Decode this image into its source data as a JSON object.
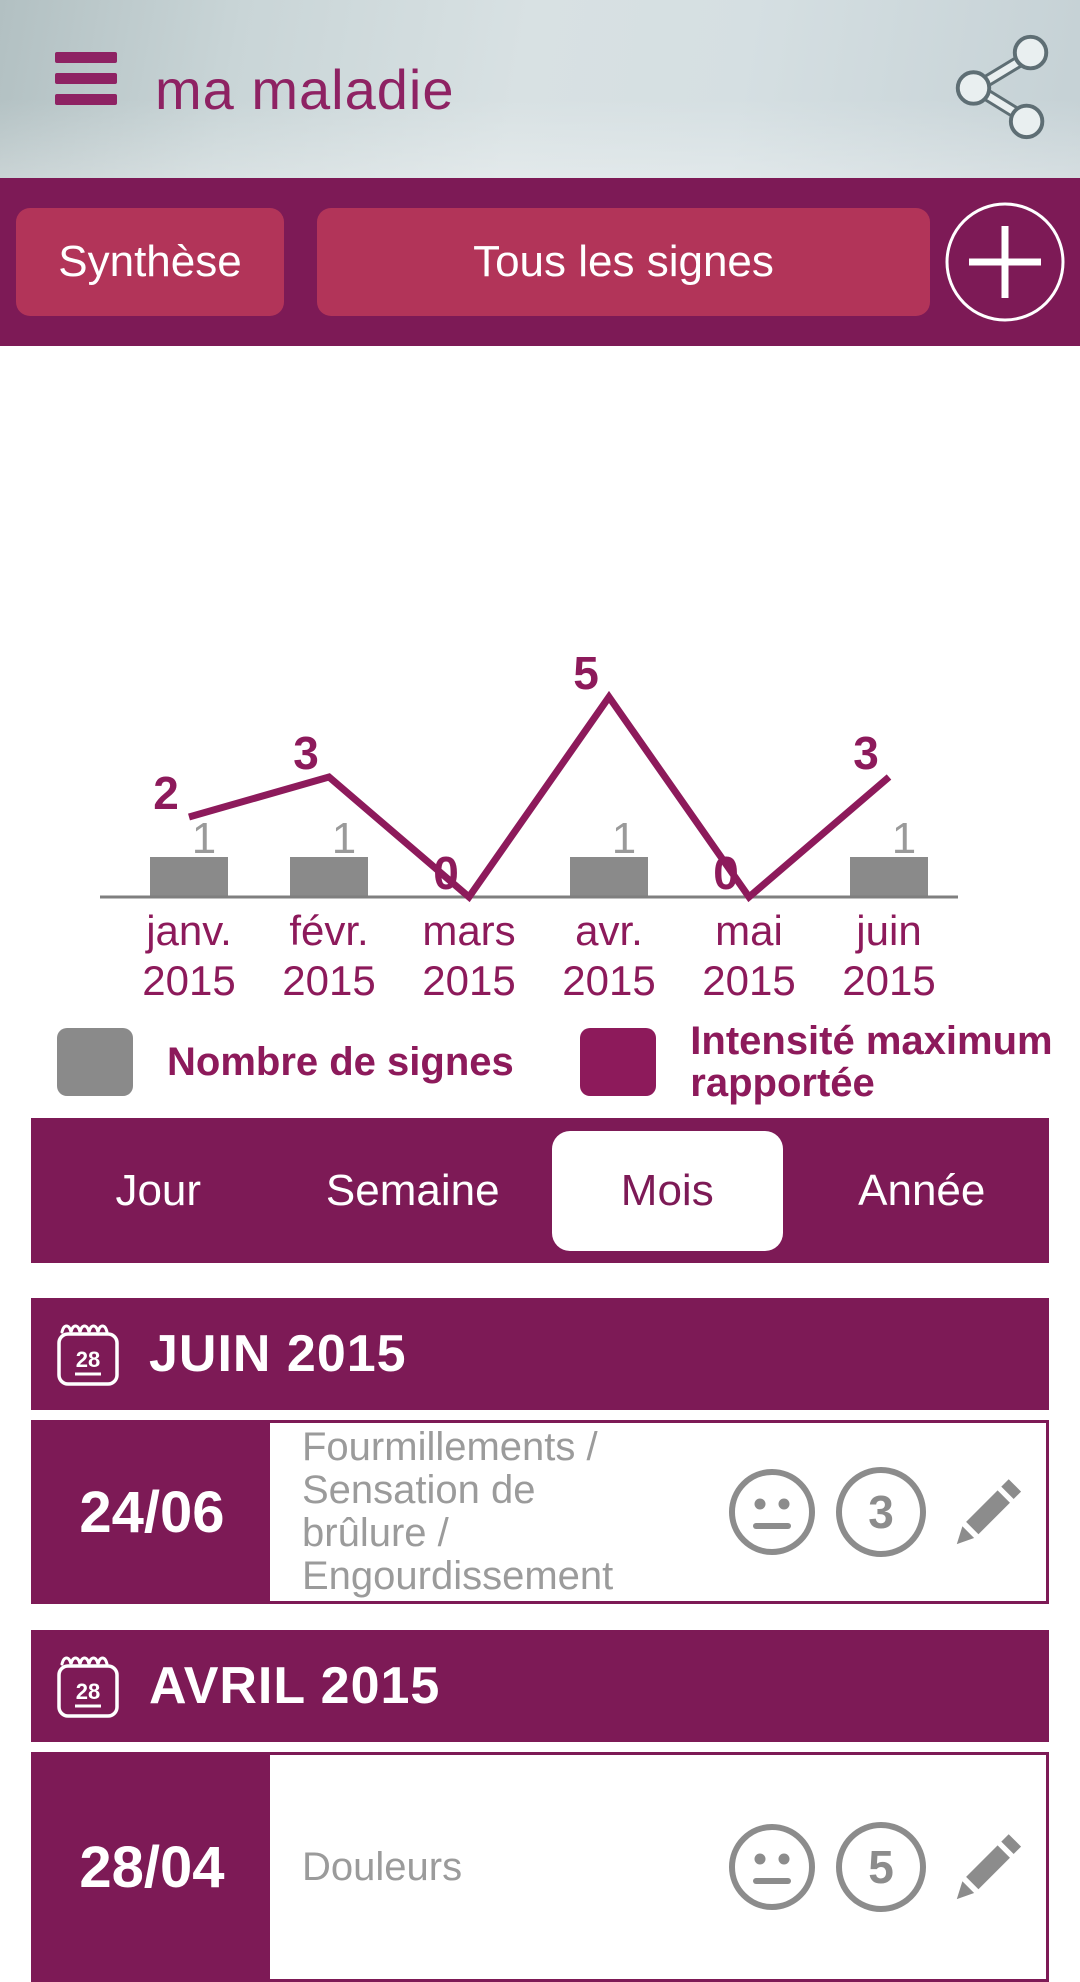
{
  "header": {
    "title": "ma maladie"
  },
  "toolbar": {
    "synthese_label": "Synthèse",
    "tous_label": "Tous les signes",
    "add_label": "+"
  },
  "chart_data": {
    "type": "line",
    "categories": [
      "janv. 2015",
      "févr. 2015",
      "mars 2015",
      "avr. 2015",
      "mai 2015",
      "juin 2015"
    ],
    "series": [
      {
        "name": "Nombre de signes",
        "type": "bar",
        "color": "#8A8A8A",
        "values": [
          1,
          1,
          0,
          1,
          0,
          1
        ]
      },
      {
        "name": "Intensité maximum rapportée",
        "type": "line",
        "color": "#8D1A5B",
        "values": [
          2,
          3,
          0,
          5,
          0,
          3
        ]
      }
    ],
    "title": "",
    "xlabel": "",
    "ylabel": "",
    "ylim": [
      0,
      5
    ],
    "grid": false,
    "legend_position": "bottom"
  },
  "period_selector": {
    "options": [
      "Jour",
      "Semaine",
      "Mois",
      "Année"
    ],
    "selected": "Mois"
  },
  "sections": [
    {
      "month_header": "JUIN 2015",
      "calendar_day": "28",
      "entries": [
        {
          "date": "24/06",
          "symptoms": "Fourmillements / Sensation de brûlure / Engourdissement",
          "intensity": "3",
          "mood": "neutral-face"
        }
      ]
    },
    {
      "month_header": "AVRIL 2015",
      "calendar_day": "28",
      "entries": [
        {
          "date": "28/04",
          "symptoms": "Douleurs",
          "intensity": "5",
          "mood": "neutral-face"
        }
      ]
    }
  ],
  "colors": {
    "dark_magenta": "#7D1A56",
    "button_raspberry": "#B23459",
    "chart_line": "#8D1A5B",
    "title_magenta": "#8E2263",
    "bar_gray": "#8A8A8A",
    "row_text_gray": "#9B9B9B"
  }
}
